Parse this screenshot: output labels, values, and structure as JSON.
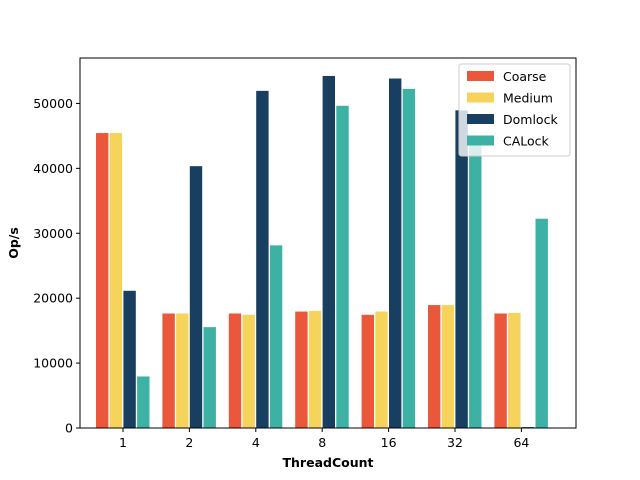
{
  "chart_data": {
    "type": "bar",
    "title": "",
    "xlabel": "ThreadCount",
    "ylabel": "Op/s",
    "categories": [
      "1",
      "2",
      "4",
      "8",
      "16",
      "32",
      "64"
    ],
    "ylim": [
      0,
      57000
    ],
    "yticks": [
      0,
      10000,
      20000,
      30000,
      40000,
      50000
    ],
    "grid": false,
    "legend_position": "top-right",
    "series": [
      {
        "name": "Coarse",
        "color": "#ea573b",
        "values": [
          45500,
          17700,
          17700,
          18000,
          17500,
          19000,
          17700
        ]
      },
      {
        "name": "Medium",
        "color": "#f6d35a",
        "values": [
          45500,
          17700,
          17500,
          18100,
          18000,
          19000,
          17800
        ]
      },
      {
        "name": "Domlock",
        "color": "#183f5f",
        "values": [
          21200,
          40400,
          52000,
          54300,
          53900,
          49000,
          200
        ]
      },
      {
        "name": "CALock",
        "color": "#3cb1a4",
        "values": [
          8000,
          15600,
          28200,
          49700,
          52300,
          44500,
          32300
        ]
      }
    ]
  }
}
